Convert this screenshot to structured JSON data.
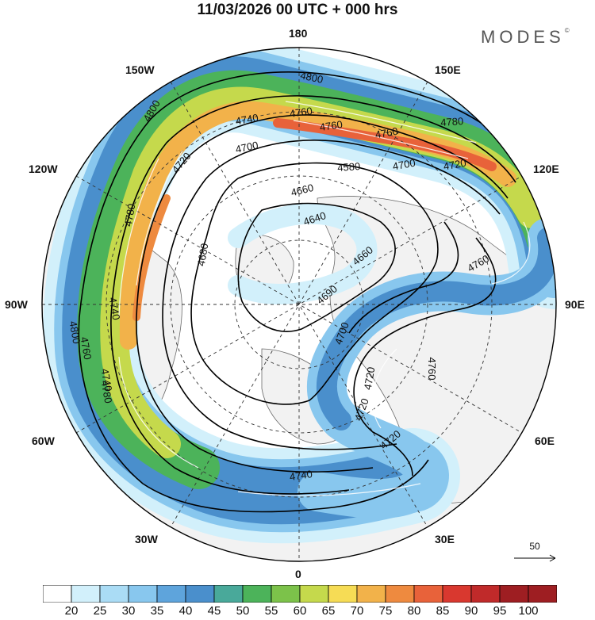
{
  "title": "11/03/2026  00 UTC  + 000 hrs",
  "brand": "MODES",
  "brand_mark": "©",
  "longitude_labels": {
    "lon_180": "180",
    "lon_150W": "150W",
    "lon_150E": "150E",
    "lon_120W": "120W",
    "lon_120E": "120E",
    "lon_90W": "90W",
    "lon_90E": "90E",
    "lon_60W": "60W",
    "lon_60E": "60E",
    "lon_30W": "30W",
    "lon_30E": "30E",
    "lon_0": "0"
  },
  "contour_labels": [
    "4800",
    "4800",
    "4760",
    "4740",
    "4760",
    "4760",
    "4780",
    "4700",
    "4720",
    "4580",
    "4700",
    "4720",
    "4780",
    "4660",
    "4640",
    "4680",
    "4740",
    "4660",
    "4760",
    "4760",
    "4740",
    "4690",
    "4700",
    "4720",
    "4800",
    "4760",
    "4780",
    "4720",
    "4720",
    "4740"
  ],
  "reference_vector": {
    "label": "50"
  },
  "colorbar": {
    "levels": [
      "20",
      "25",
      "30",
      "35",
      "40",
      "45",
      "50",
      "55",
      "60",
      "65",
      "70",
      "75",
      "80",
      "85",
      "90",
      "95",
      "100"
    ],
    "colors": [
      "#ffffff",
      "#d2f0fb",
      "#aadcf5",
      "#88c7ee",
      "#5ea4dc",
      "#4a8fcc",
      "#49a99a",
      "#4cb35a",
      "#7cc24a",
      "#c5d94c",
      "#f6dc55",
      "#f2b24a",
      "#ee8a3f",
      "#e8623a",
      "#d9382f",
      "#c02a2a",
      "#9e1e22"
    ]
  },
  "map_colors": {
    "land": "#f2f2f2",
    "ocean": "#ffffff",
    "coast": "#6a6a6a",
    "contour": "#000000",
    "grid": "#333333"
  }
}
